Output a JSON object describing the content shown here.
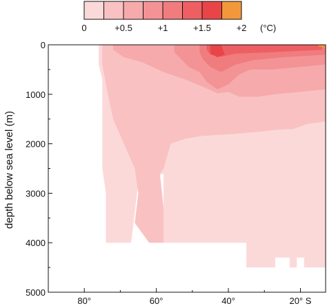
{
  "chart_data": {
    "type": "heatmap",
    "title": "",
    "xlabel": "",
    "ylabel": "depth below sea level (m)",
    "x_axis": {
      "direction": "decreasing-left-to-right",
      "xlim": [
        90,
        13
      ],
      "ticks": [
        80,
        60,
        40,
        20
      ],
      "tick_labels": [
        "80°",
        "60°",
        "40°",
        "20° S"
      ]
    },
    "y_axis": {
      "direction": "increasing-downward",
      "ylim": [
        0,
        5000
      ],
      "ticks": [
        0,
        1000,
        2000,
        3000,
        4000,
        5000
      ],
      "tick_labels": [
        "0",
        "1000",
        "2000",
        "3000",
        "4000",
        "5000"
      ]
    },
    "colorbar": {
      "position": "top",
      "unit_label": "(°C)",
      "bins": [
        {
          "range": [
            0,
            0.25
          ],
          "color": "#fcd9d9"
        },
        {
          "range": [
            0.25,
            0.5
          ],
          "color": "#f9c1c2"
        },
        {
          "range": [
            0.5,
            0.75
          ],
          "color": "#f6aaab"
        },
        {
          "range": [
            0.75,
            1.0
          ],
          "color": "#f39395"
        },
        {
          "range": [
            1.0,
            1.25
          ],
          "color": "#f07c7e"
        },
        {
          "range": [
            1.25,
            1.5
          ],
          "color": "#ed5f62"
        },
        {
          "range": [
            1.5,
            1.75
          ],
          "color": "#e94549"
        },
        {
          "range": [
            1.75,
            2.0
          ],
          "color": "#f2983a"
        }
      ],
      "ticks": [
        0,
        0.5,
        1,
        1.5,
        2
      ],
      "tick_labels": [
        "0",
        "+0.5",
        "+1",
        "+1.5",
        "+2"
      ]
    },
    "regions": [
      {
        "name": "0 to +0.25",
        "bin": 0,
        "polygon": [
          [
            72,
            0
          ],
          [
            13,
            0
          ],
          [
            13,
            4500
          ],
          [
            19,
            4500
          ],
          [
            19,
            4300
          ],
          [
            21,
            4300
          ],
          [
            21,
            4500
          ],
          [
            23,
            4500
          ],
          [
            23,
            4300
          ],
          [
            27,
            4300
          ],
          [
            27,
            4500
          ],
          [
            35,
            4500
          ],
          [
            35,
            4000
          ],
          [
            58,
            4000
          ],
          [
            58,
            2600
          ],
          [
            65,
            2800
          ],
          [
            66,
            3400
          ],
          [
            67,
            4000
          ],
          [
            74,
            4000
          ],
          [
            74,
            3000
          ],
          [
            75,
            2500
          ],
          [
            75,
            700
          ],
          [
            76,
            400
          ],
          [
            76,
            0
          ]
        ]
      },
      {
        "name": "+0.25 to +0.5",
        "bin": 1,
        "polygon": [
          [
            75,
            0
          ],
          [
            13,
            0
          ],
          [
            13,
            1550
          ],
          [
            18,
            1600
          ],
          [
            22,
            1700
          ],
          [
            27,
            1720
          ],
          [
            32,
            1760
          ],
          [
            38,
            1800
          ],
          [
            43,
            1820
          ],
          [
            48,
            1850
          ],
          [
            52,
            1900
          ],
          [
            56,
            2000
          ],
          [
            58,
            2500
          ],
          [
            59,
            2600
          ],
          [
            58,
            3300
          ],
          [
            58,
            4000
          ],
          [
            62,
            4000
          ],
          [
            64,
            3800
          ],
          [
            66,
            3600
          ],
          [
            65,
            3000
          ],
          [
            66,
            2500
          ],
          [
            72,
            1500
          ],
          [
            74,
            800
          ],
          [
            75,
            400
          ]
        ]
      },
      {
        "name": "+0.5 to +0.75",
        "bin": 2,
        "polygon": [
          [
            72,
            0
          ],
          [
            13,
            0
          ],
          [
            13,
            900
          ],
          [
            20,
            950
          ],
          [
            26,
            990
          ],
          [
            32,
            1050
          ],
          [
            37,
            1050
          ],
          [
            40,
            950
          ],
          [
            43,
            980
          ],
          [
            47,
            850
          ],
          [
            52,
            700
          ],
          [
            58,
            550
          ],
          [
            64,
            350
          ],
          [
            69,
            250
          ],
          [
            72,
            100
          ]
        ]
      },
      {
        "name": "+0.75 to +1.0",
        "bin": 3,
        "polygon": [
          [
            55,
            0
          ],
          [
            13,
            0
          ],
          [
            13,
            400
          ],
          [
            22,
            460
          ],
          [
            28,
            500
          ],
          [
            34,
            500
          ],
          [
            37,
            600
          ],
          [
            40,
            800
          ],
          [
            43,
            900
          ],
          [
            46,
            750
          ],
          [
            48,
            550
          ],
          [
            51,
            450
          ],
          [
            53,
            300
          ],
          [
            55,
            150
          ]
        ]
      },
      {
        "name": "+1.0 to +1.25",
        "bin": 4,
        "polygon": [
          [
            48,
            0
          ],
          [
            13,
            0
          ],
          [
            13,
            200
          ],
          [
            25,
            250
          ],
          [
            33,
            310
          ],
          [
            38,
            400
          ],
          [
            42,
            550
          ],
          [
            45,
            450
          ],
          [
            47,
            300
          ],
          [
            48,
            150
          ]
        ]
      },
      {
        "name": "+1.25 to +1.5",
        "bin": 5,
        "polygon": [
          [
            46,
            0
          ],
          [
            14,
            0
          ],
          [
            14,
            100
          ],
          [
            28,
            150
          ],
          [
            38,
            180
          ],
          [
            42,
            240
          ],
          [
            45,
            200
          ],
          [
            46,
            100
          ]
        ]
      },
      {
        "name": "+1.5 to +1.75",
        "bin": 6,
        "polygon": [
          [
            45,
            0
          ],
          [
            42,
            0
          ],
          [
            41,
            200
          ],
          [
            43,
            250
          ],
          [
            45,
            180
          ]
        ]
      },
      {
        "name": "+1.75 to +2.0",
        "bin": 7,
        "polygon": [
          [
            15,
            0
          ],
          [
            13,
            0
          ],
          [
            13,
            60
          ],
          [
            15,
            30
          ]
        ]
      }
    ]
  }
}
